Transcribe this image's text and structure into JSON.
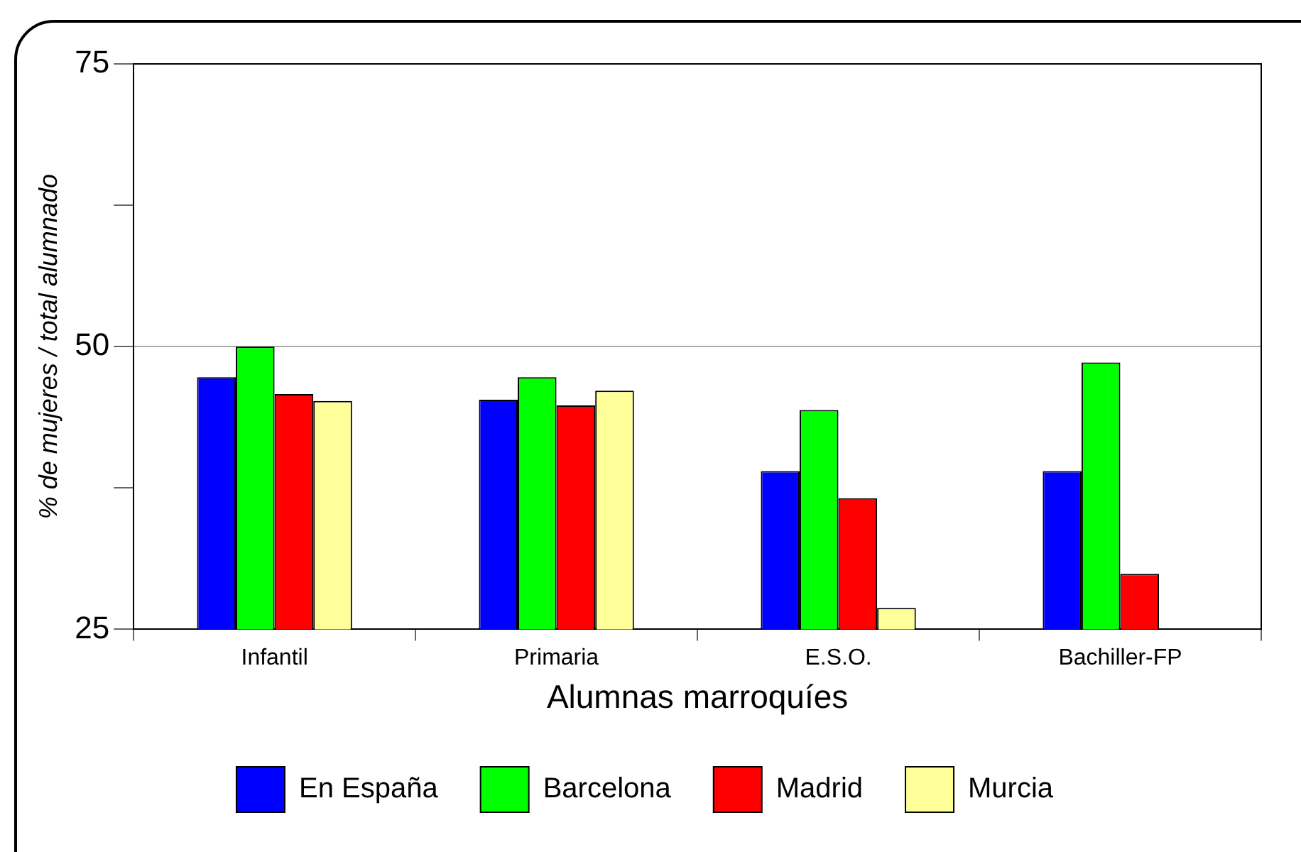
{
  "chart_data": {
    "type": "bar",
    "xlabel": "Alumnas marroquíes",
    "ylabel": "% de mujeres / total alumnado",
    "categories": [
      "Infantil",
      "Primaria",
      "E.S.O.",
      "Bachiller-FP"
    ],
    "series": [
      {
        "name": "En España",
        "color": "#0000ff",
        "values": [
          47.3,
          45.3,
          39.0,
          39.0
        ]
      },
      {
        "name": "Barcelona",
        "color": "#00ff00",
        "values": [
          50.0,
          47.3,
          44.4,
          48.6
        ]
      },
      {
        "name": "Madrid",
        "color": "#ff0000",
        "values": [
          45.8,
          44.8,
          36.6,
          29.9
        ]
      },
      {
        "name": "Murcia",
        "color": "#ffff99",
        "values": [
          45.2,
          46.1,
          26.9,
          null
        ]
      }
    ],
    "ylim": [
      25,
      75
    ],
    "yticks": [
      25,
      {
        "value": 37.5,
        "label": null
      },
      50,
      {
        "value": 62.5,
        "label": null
      },
      75
    ],
    "grid": "y",
    "legend": "bottom"
  }
}
